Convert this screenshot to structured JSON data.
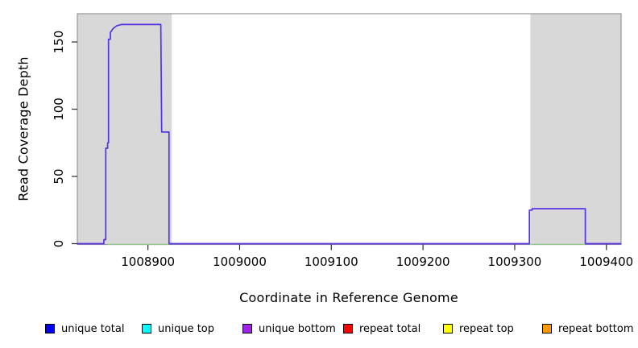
{
  "chart_data": {
    "type": "line",
    "title": "",
    "xlabel": "Coordinate in Reference Genome",
    "ylabel": "Read Coverage Depth",
    "xlim": [
      1008823,
      1009416
    ],
    "ylim": [
      0,
      171
    ],
    "x_ticks": [
      1008900,
      1009000,
      1009100,
      1009200,
      1009300,
      1009400
    ],
    "x_tick_labels": [
      "1008900",
      "1009000",
      "1009100",
      "1009200",
      "1009300",
      "1009400"
    ],
    "y_ticks": [
      0,
      50,
      100,
      150
    ],
    "y_tick_labels": [
      "0",
      "50",
      "100",
      "150"
    ],
    "grid": false,
    "legend_position": "bottom",
    "band_color": "#d8d8d8",
    "frame_color": "#979797",
    "tick_color": "#2b2b2b",
    "text_color": "#000000",
    "shaded_regions": [
      {
        "name": "left-repeat-band",
        "x0": 1008823,
        "x1": 1008926,
        "color": "#d8d8d8"
      },
      {
        "name": "right-repeat-band",
        "x0": 1009317,
        "x1": 1009416,
        "color": "#d8d8d8"
      }
    ],
    "series": [
      {
        "name": "unique-coverage",
        "color": "#5632e2",
        "points": [
          [
            1008823,
            0
          ],
          [
            1008852,
            0
          ],
          [
            1008852,
            3
          ],
          [
            1008854,
            3
          ],
          [
            1008854,
            71
          ],
          [
            1008856,
            71
          ],
          [
            1008856,
            75
          ],
          [
            1008857,
            75
          ],
          [
            1008857,
            152
          ],
          [
            1008859,
            152
          ],
          [
            1008859,
            157
          ],
          [
            1008862,
            160
          ],
          [
            1008866,
            162
          ],
          [
            1008871,
            163
          ],
          [
            1008914,
            163
          ],
          [
            1008915,
            83
          ],
          [
            1008923,
            83
          ],
          [
            1008923,
            0
          ],
          [
            1009316,
            0
          ],
          [
            1009316,
            25
          ],
          [
            1009319,
            25
          ],
          [
            1009319,
            26
          ],
          [
            1009377,
            26
          ],
          [
            1009377,
            0
          ],
          [
            1009416,
            0
          ]
        ]
      },
      {
        "name": "zero-depth-overlap",
        "color": "#8ccb8c",
        "segments": [
          [
            1008856,
            1008923
          ],
          [
            1009316,
            1009377
          ]
        ]
      }
    ],
    "legend": [
      {
        "label": "unique total",
        "color": "#0000ff"
      },
      {
        "label": "unique top",
        "color": "#00ffff"
      },
      {
        "label": "unique bottom",
        "color": "#a020f0"
      },
      {
        "label": "repeat total",
        "color": "#ff0000"
      },
      {
        "label": "repeat top",
        "color": "#ffff00"
      },
      {
        "label": "repeat bottom",
        "color": "#ff9900"
      }
    ]
  }
}
